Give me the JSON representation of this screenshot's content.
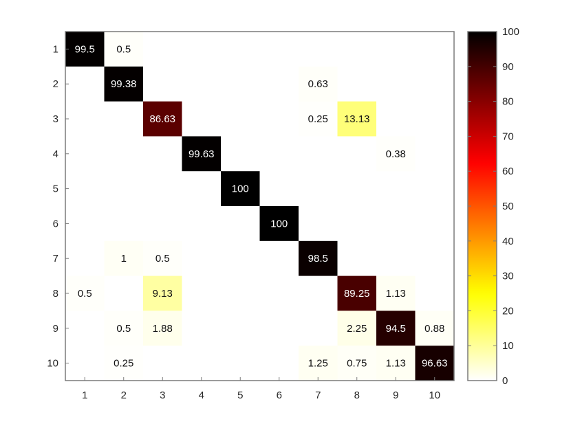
{
  "chart_data": {
    "type": "heatmap",
    "title": "",
    "xlabel": "",
    "ylabel": "",
    "x_categories": [
      "1",
      "2",
      "3",
      "4",
      "5",
      "6",
      "7",
      "8",
      "9",
      "10"
    ],
    "y_categories": [
      "1",
      "2",
      "3",
      "4",
      "5",
      "6",
      "7",
      "8",
      "9",
      "10"
    ],
    "cells": [
      {
        "row": "1",
        "col": "1",
        "value": 99.5,
        "label": "99.5"
      },
      {
        "row": "1",
        "col": "2",
        "value": 0.5,
        "label": "0.5"
      },
      {
        "row": "2",
        "col": "2",
        "value": 99.38,
        "label": "99.38"
      },
      {
        "row": "2",
        "col": "7",
        "value": 0.63,
        "label": "0.63"
      },
      {
        "row": "3",
        "col": "3",
        "value": 86.63,
        "label": "86.63"
      },
      {
        "row": "3",
        "col": "7",
        "value": 0.25,
        "label": "0.25"
      },
      {
        "row": "3",
        "col": "8",
        "value": 13.13,
        "label": "13.13"
      },
      {
        "row": "4",
        "col": "4",
        "value": 99.63,
        "label": "99.63"
      },
      {
        "row": "4",
        "col": "9",
        "value": 0.38,
        "label": "0.38"
      },
      {
        "row": "5",
        "col": "5",
        "value": 100,
        "label": "100"
      },
      {
        "row": "6",
        "col": "6",
        "value": 100,
        "label": "100"
      },
      {
        "row": "7",
        "col": "2",
        "value": 1,
        "label": "1"
      },
      {
        "row": "7",
        "col": "3",
        "value": 0.5,
        "label": "0.5"
      },
      {
        "row": "7",
        "col": "7",
        "value": 98.5,
        "label": "98.5"
      },
      {
        "row": "8",
        "col": "1",
        "value": 0.5,
        "label": "0.5"
      },
      {
        "row": "8",
        "col": "3",
        "value": 9.13,
        "label": "9.13"
      },
      {
        "row": "8",
        "col": "8",
        "value": 89.25,
        "label": "89.25"
      },
      {
        "row": "8",
        "col": "9",
        "value": 1.13,
        "label": "1.13"
      },
      {
        "row": "9",
        "col": "2",
        "value": 0.5,
        "label": "0.5"
      },
      {
        "row": "9",
        "col": "3",
        "value": 1.88,
        "label": "1.88"
      },
      {
        "row": "9",
        "col": "8",
        "value": 2.25,
        "label": "2.25"
      },
      {
        "row": "9",
        "col": "9",
        "value": 94.5,
        "label": "94.5"
      },
      {
        "row": "9",
        "col": "10",
        "value": 0.88,
        "label": "0.88"
      },
      {
        "row": "10",
        "col": "2",
        "value": 0.25,
        "label": "0.25"
      },
      {
        "row": "10",
        "col": "7",
        "value": 1.25,
        "label": "1.25"
      },
      {
        "row": "10",
        "col": "8",
        "value": 0.75,
        "label": "0.75"
      },
      {
        "row": "10",
        "col": "9",
        "value": 1.13,
        "label": "1.13"
      },
      {
        "row": "10",
        "col": "10",
        "value": 96.63,
        "label": "96.63"
      }
    ],
    "colorbar": {
      "colormap": "hot (reversed)",
      "range": [
        0,
        100
      ],
      "ticks": [
        "0",
        "10",
        "20",
        "30",
        "40",
        "50",
        "60",
        "70",
        "80",
        "90",
        "100"
      ],
      "stops": [
        "#ffffff",
        "#ffff80",
        "#ffff00",
        "#ff8000",
        "#ff0000",
        "#800000",
        "#000000"
      ]
    },
    "grid": false,
    "colorbar_placement": "right"
  }
}
